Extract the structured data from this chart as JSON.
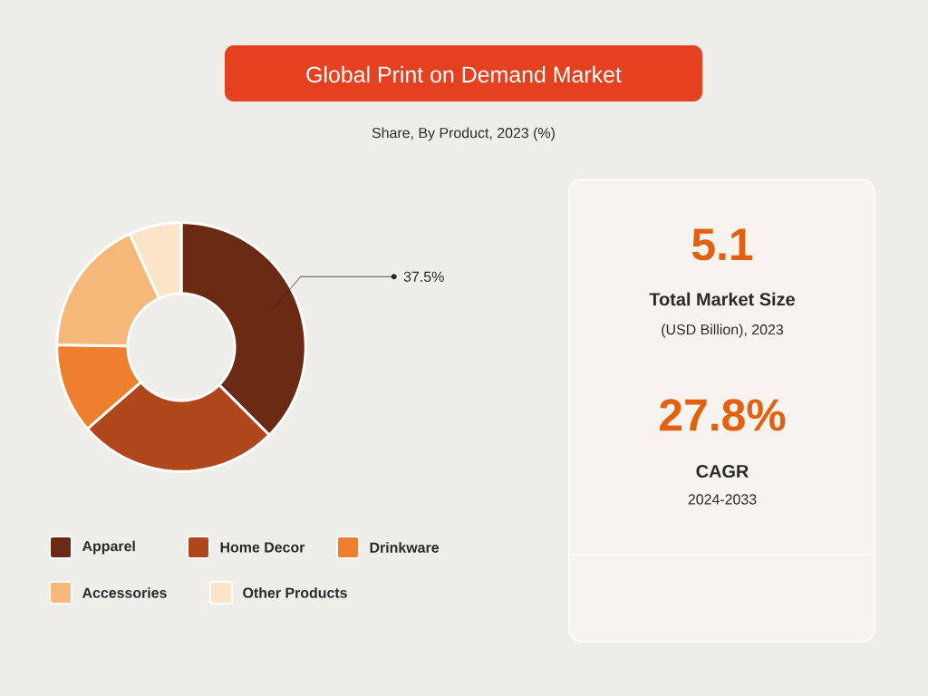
{
  "chart_data": [
    {
      "type": "donut",
      "title": "Global Print on Demand Market",
      "subtitle": "Share, By Product, 2023 (%)",
      "categories": [
        "Apparel",
        "Home Decor",
        "Drinkware",
        "Accessories",
        "Other Products"
      ],
      "values": [
        37.5,
        26.1,
        11.7,
        17.9,
        6.8
      ],
      "colors": [
        "#6b2a14",
        "#b0461c",
        "#ee7f2e",
        "#f6b878",
        "#fbe4c8"
      ],
      "value_labels": [
        "37.5%",
        null,
        null,
        null,
        null
      ],
      "legend": "bottom"
    },
    {
      "type": "other",
      "annotations": [
        "5.1",
        "Total Market Size",
        "(USD Billion), 2023",
        "27.8%",
        "CAGR",
        "2024-2033"
      ]
    }
  ]
}
